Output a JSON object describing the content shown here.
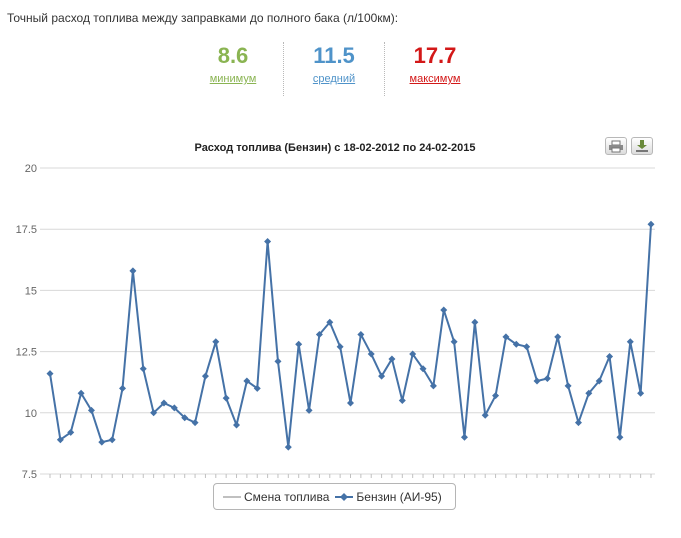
{
  "page": {
    "heading": "Точный расход топлива между заправками до полного бака (л/100км):"
  },
  "stats": {
    "min": {
      "value": "8.6",
      "label": "минимум",
      "color": "#8ab452"
    },
    "avg": {
      "value": "11.5",
      "label": "средний",
      "color": "#4f93c9"
    },
    "max": {
      "value": "17.7",
      "label": "максимум",
      "color": "#d31818"
    }
  },
  "toolbar": {
    "print_icon": "printer-icon",
    "download_icon": "download-icon"
  },
  "chart_data": {
    "type": "line",
    "title": "Расход топлива (Бензин) с 18-02-2012 по 24-02-2015",
    "xlabel": "",
    "ylabel": "",
    "ylim": [
      7.5,
      20
    ],
    "yticks": [
      "7.5",
      "10",
      "12.5",
      "15",
      "17.5",
      "20"
    ],
    "grid": true,
    "legend_position": "bottom",
    "series": [
      {
        "name": "Бензин (АИ-95)",
        "color": "#4572a7",
        "marker": "diamond",
        "values": [
          11.6,
          8.9,
          9.2,
          10.8,
          10.1,
          8.8,
          8.9,
          11.0,
          15.8,
          11.8,
          10.0,
          10.4,
          10.2,
          9.8,
          9.6,
          11.5,
          12.9,
          10.6,
          9.5,
          11.3,
          11.0,
          17.0,
          12.1,
          8.6,
          12.8,
          10.1,
          13.2,
          13.7,
          12.7,
          10.4,
          13.2,
          12.4,
          11.5,
          12.2,
          10.5,
          12.4,
          11.8,
          11.1,
          14.2,
          12.9,
          9.0,
          13.7,
          9.9,
          10.7,
          13.1,
          12.8,
          12.7,
          11.3,
          11.4,
          13.1,
          11.1,
          9.6,
          10.8,
          11.3,
          12.3,
          9.0,
          12.9,
          10.8,
          17.7
        ]
      },
      {
        "name": "Смена топлива",
        "color": "#c0c0c0",
        "marker": "none",
        "values": []
      }
    ]
  }
}
